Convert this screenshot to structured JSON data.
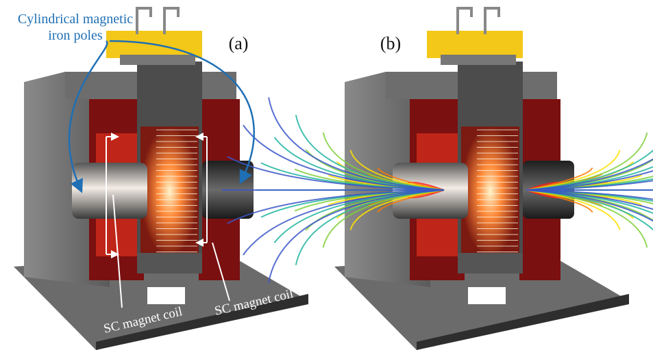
{
  "panel_labels": [
    "(a)",
    "(b)"
  ],
  "pole_label": [
    "Cylindrical magnetic",
    "iron poles"
  ],
  "coil_labels": [
    "SC magnet coil",
    "SC magnet coil"
  ]
}
